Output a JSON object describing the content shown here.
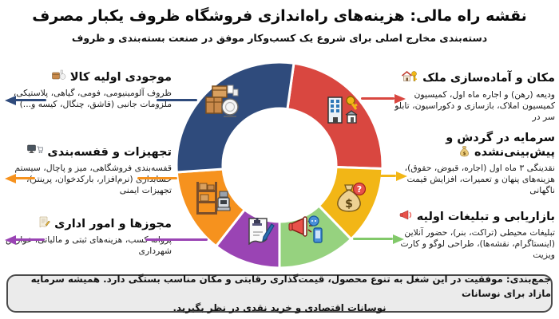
{
  "header": {
    "title": "نقشه راه مالی: هزینه‌های راه‌اندازی فروشگاه ظروف یکبار مصرف",
    "subtitle": "دسته‌بندی مخارج اصلی برای شروع یک کسب‌وکار موفق در صنعت بسته‌بندی و ظروف"
  },
  "left_sections": [
    {
      "title": "موجودی اولیه کالا",
      "icon": "package-plate-icon",
      "desc": "ظروف آلومینیومی، فومی، گیاهی، پلاستیکی، ملزومات جانبی (قاشق، چنگال، کیسه و...)",
      "color": "#2F4B7C"
    },
    {
      "title": "تجهیزات و قفسه‌بندی",
      "icon": "monitor-cart-icon",
      "desc": "قفسه‌بندی فروشگاهی، میز و پاچال، سیستم حسابداری (نرم‌افزار، بارکدخوان، پرینتر)، تجهیزات ایمنی",
      "color": "#F6921E"
    },
    {
      "title": "مجوزها و امور اداری",
      "icon": "scroll-pen-icon",
      "desc": "پروانه کسب، هزینه‌های ثبتی و مالیاتی، عوارض شهرداری",
      "color": "#9A44B4"
    }
  ],
  "right_sections": [
    {
      "title": "مکان و آماده‌سازی ملک",
      "icon": "house-key-icon",
      "desc": "ودیعه (رهن) و اجاره ماه اول، کمیسیون کمیسیون املاک، بازسازی و دکوراسیون، تابلو سر در",
      "color": "#D94740"
    },
    {
      "title_line1": "سرمایه در گردش و",
      "title_line2": "پیش‌بینی‌نشده",
      "icon": "money-bag-icon",
      "desc": "نقدینگی ۳ ماه اول (اجاره، قبوض، حقوق)، هزینه‌های پنهان و تعمیرات، افزایش قیمت ناگهانی",
      "color": "#F2B616"
    },
    {
      "title": "بازاریابی و تبلیغات اولیه",
      "icon": "megaphone-icon",
      "desc": "تبلیغات محیطی (تراکت، بنر)، حضور آنلاین (اینستاگرام، نقشه‌ها)، طراحی لوگو و کارت ویزیت",
      "color": "#82C96A"
    }
  ],
  "summary": {
    "line1": "جمع‌بندی: موفقیت در این شغل به تنوع محصول، قیمت‌گذاری رقابتی و مکان مناسب بستگی دارد. همیشه سرمایه مازاد برای نوسانات",
    "line2": "نوسانات اقتصادی و خرید نقدی در نظر بگیرید."
  },
  "chart_data": {
    "type": "pie",
    "donut": true,
    "title": "هزینه‌های راه‌اندازی فروشگاه ظروف یکبار مصرف",
    "legend_position": "around",
    "segments": [
      {
        "label": "مکان و آماده‌سازی ملک",
        "icon": "building-key-icon",
        "color": "#D94740",
        "start_deg": 8,
        "end_deg": 92,
        "share_pct": 23.3
      },
      {
        "label": "سرمایه در گردش و پیش‌بینی‌نشده",
        "icon": "money-bag-question-icon",
        "color": "#F2B616",
        "start_deg": 92,
        "end_deg": 136,
        "share_pct": 12.2
      },
      {
        "label": "بازاریابی و تبلیغات اولیه",
        "icon": "megaphone-phone-icon",
        "color": "#96D27F",
        "start_deg": 136,
        "end_deg": 180,
        "share_pct": 12.2
      },
      {
        "label": "مجوزها و امور اداری",
        "icon": "document-stamp-icon",
        "color": "#9A44B4",
        "start_deg": 180,
        "end_deg": 218,
        "share_pct": 10.6
      },
      {
        "label": "تجهیزات و قفسه‌بندی",
        "icon": "shelf-register-icon",
        "color": "#F6921E",
        "start_deg": 218,
        "end_deg": 266,
        "share_pct": 13.3
      },
      {
        "label": "موجودی اولیه کالا",
        "icon": "boxes-plates-icon",
        "color": "#2F4B7C",
        "start_deg": 266,
        "end_deg": 368,
        "share_pct": 28.4
      }
    ]
  }
}
